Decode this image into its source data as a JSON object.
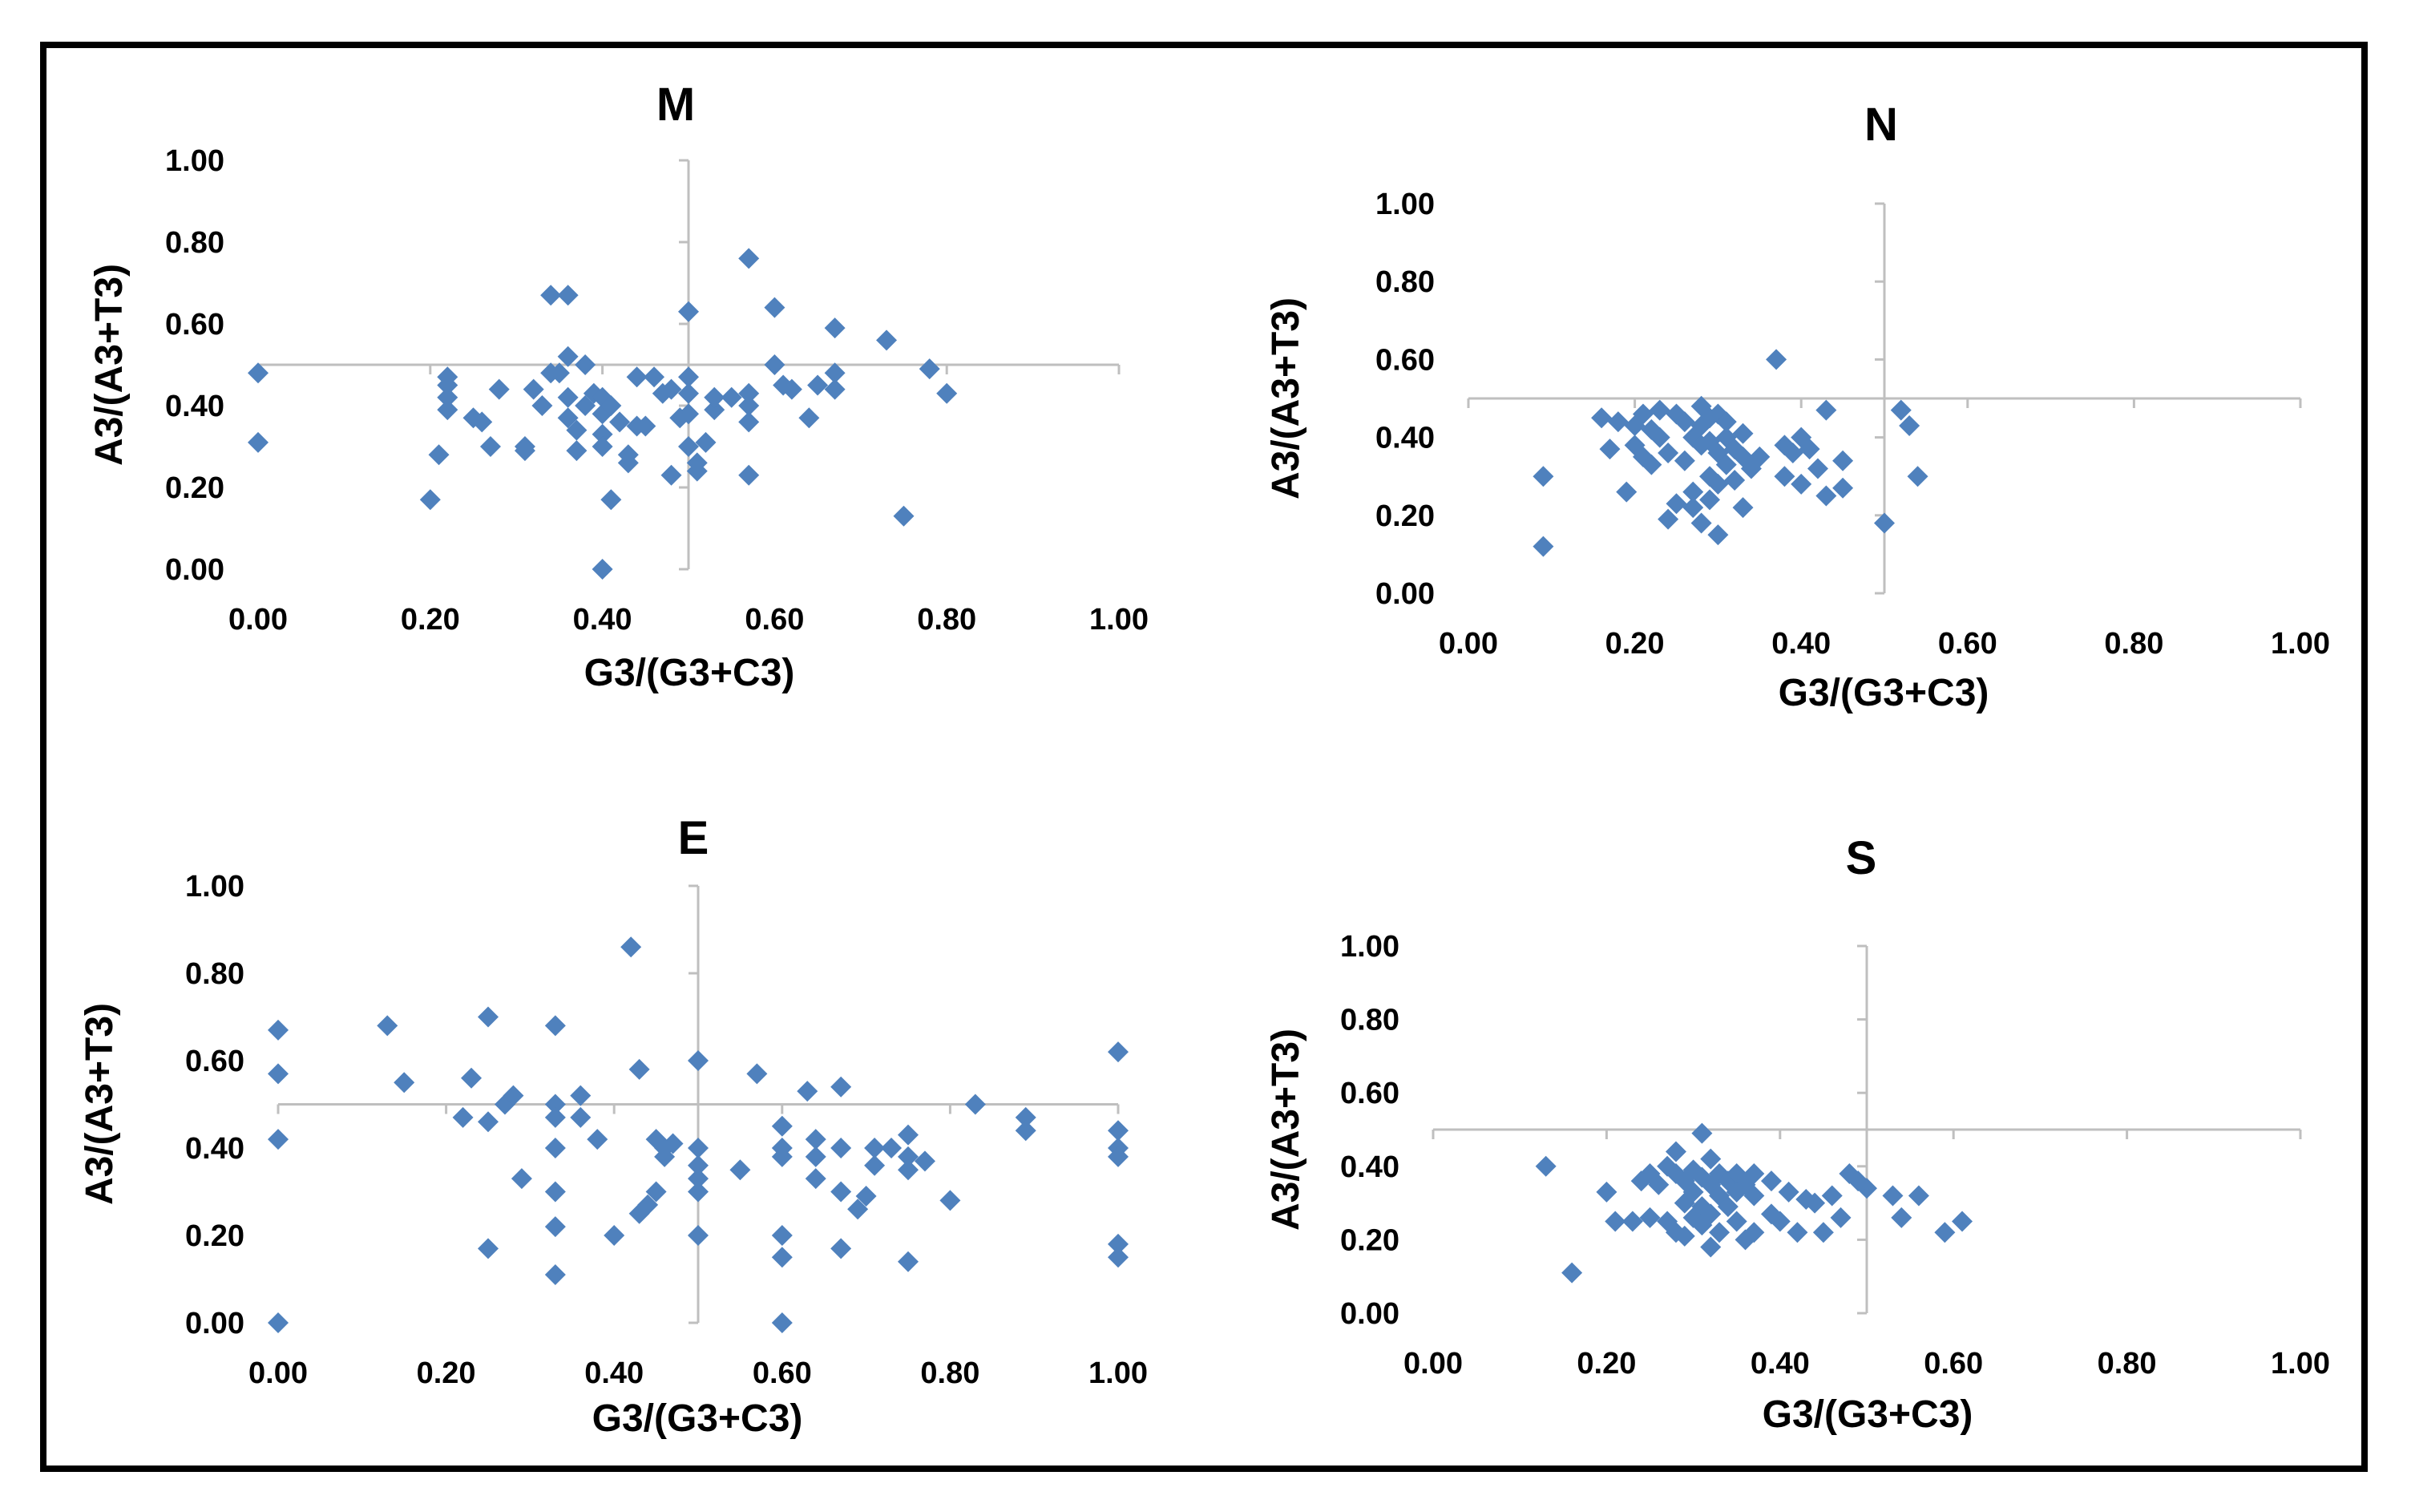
{
  "chart_data": [
    {
      "type": "scatter",
      "title": "M",
      "xlabel": "G3/(G3+C3)",
      "ylabel": "A3/(A3+T3)",
      "xlim": [
        0,
        1
      ],
      "ylim": [
        0,
        1
      ],
      "xticks": [
        "0.00",
        "0.20",
        "0.40",
        "0.60",
        "0.80",
        "1.00"
      ],
      "yticks": [
        "0.00",
        "0.20",
        "0.40",
        "0.60",
        "0.80",
        "1.00"
      ],
      "reference_lines": {
        "x": 0.5,
        "y": 0.5
      },
      "marker": "diamond",
      "color": "#4F81BD",
      "points": [
        [
          0.0,
          0.48
        ],
        [
          0.0,
          0.31
        ],
        [
          0.2,
          0.17
        ],
        [
          0.21,
          0.28
        ],
        [
          0.22,
          0.39
        ],
        [
          0.22,
          0.42
        ],
        [
          0.22,
          0.45
        ],
        [
          0.22,
          0.47
        ],
        [
          0.25,
          0.37
        ],
        [
          0.26,
          0.36
        ],
        [
          0.27,
          0.3
        ],
        [
          0.28,
          0.44
        ],
        [
          0.31,
          0.29
        ],
        [
          0.31,
          0.3
        ],
        [
          0.32,
          0.44
        ],
        [
          0.33,
          0.4
        ],
        [
          0.34,
          0.67
        ],
        [
          0.34,
          0.48
        ],
        [
          0.35,
          0.48
        ],
        [
          0.36,
          0.67
        ],
        [
          0.36,
          0.52
        ],
        [
          0.36,
          0.42
        ],
        [
          0.36,
          0.37
        ],
        [
          0.37,
          0.29
        ],
        [
          0.37,
          0.34
        ],
        [
          0.38,
          0.4
        ],
        [
          0.38,
          0.5
        ],
        [
          0.39,
          0.43
        ],
        [
          0.4,
          0.42
        ],
        [
          0.4,
          0.38
        ],
        [
          0.4,
          0.33
        ],
        [
          0.4,
          0.3
        ],
        [
          0.41,
          0.17
        ],
        [
          0.41,
          0.4
        ],
        [
          0.42,
          0.36
        ],
        [
          0.43,
          0.26
        ],
        [
          0.43,
          0.28
        ],
        [
          0.44,
          0.47
        ],
        [
          0.44,
          0.35
        ],
        [
          0.45,
          0.35
        ],
        [
          0.46,
          0.47
        ],
        [
          0.47,
          0.43
        ],
        [
          0.48,
          0.23
        ],
        [
          0.48,
          0.44
        ],
        [
          0.49,
          0.37
        ],
        [
          0.5,
          0.3
        ],
        [
          0.4,
          0.0
        ],
        [
          0.5,
          0.63
        ],
        [
          0.5,
          0.47
        ],
        [
          0.5,
          0.43
        ],
        [
          0.5,
          0.38
        ],
        [
          0.51,
          0.26
        ],
        [
          0.51,
          0.24
        ],
        [
          0.52,
          0.31
        ],
        [
          0.53,
          0.39
        ],
        [
          0.53,
          0.42
        ],
        [
          0.55,
          0.42
        ],
        [
          0.57,
          0.76
        ],
        [
          0.57,
          0.43
        ],
        [
          0.57,
          0.4
        ],
        [
          0.57,
          0.36
        ],
        [
          0.57,
          0.23
        ],
        [
          0.6,
          0.64
        ],
        [
          0.6,
          0.5
        ],
        [
          0.61,
          0.45
        ],
        [
          0.62,
          0.44
        ],
        [
          0.64,
          0.37
        ],
        [
          0.65,
          0.45
        ],
        [
          0.67,
          0.59
        ],
        [
          0.67,
          0.48
        ],
        [
          0.67,
          0.44
        ],
        [
          0.73,
          0.56
        ],
        [
          0.75,
          0.13
        ],
        [
          0.78,
          0.49
        ],
        [
          0.8,
          0.43
        ]
      ]
    },
    {
      "type": "scatter",
      "title": "N",
      "xlabel": "G3/(G3+C3)",
      "ylabel": "A3/(A3+T3)",
      "xlim": [
        0,
        1
      ],
      "ylim": [
        0,
        1
      ],
      "xticks": [
        "0.00",
        "0.20",
        "0.40",
        "0.60",
        "0.80",
        "1.00"
      ],
      "yticks": [
        "0.00",
        "0.20",
        "0.40",
        "0.60",
        "0.80",
        "1.00"
      ],
      "reference_lines": {
        "x": 0.5,
        "y": 0.5
      },
      "marker": "diamond",
      "color": "#4F81BD",
      "points": [
        [
          0.09,
          0.3
        ],
        [
          0.09,
          0.12
        ],
        [
          0.16,
          0.45
        ],
        [
          0.17,
          0.37
        ],
        [
          0.18,
          0.44
        ],
        [
          0.19,
          0.26
        ],
        [
          0.2,
          0.43
        ],
        [
          0.2,
          0.38
        ],
        [
          0.21,
          0.46
        ],
        [
          0.21,
          0.35
        ],
        [
          0.22,
          0.42
        ],
        [
          0.22,
          0.33
        ],
        [
          0.23,
          0.47
        ],
        [
          0.23,
          0.4
        ],
        [
          0.24,
          0.36
        ],
        [
          0.24,
          0.19
        ],
        [
          0.25,
          0.46
        ],
        [
          0.25,
          0.23
        ],
        [
          0.26,
          0.44
        ],
        [
          0.26,
          0.34
        ],
        [
          0.27,
          0.4
        ],
        [
          0.27,
          0.26
        ],
        [
          0.27,
          0.22
        ],
        [
          0.28,
          0.48
        ],
        [
          0.28,
          0.43
        ],
        [
          0.28,
          0.38
        ],
        [
          0.28,
          0.18
        ],
        [
          0.29,
          0.45
        ],
        [
          0.29,
          0.39
        ],
        [
          0.29,
          0.3
        ],
        [
          0.29,
          0.24
        ],
        [
          0.3,
          0.46
        ],
        [
          0.3,
          0.36
        ],
        [
          0.3,
          0.28
        ],
        [
          0.3,
          0.15
        ],
        [
          0.31,
          0.44
        ],
        [
          0.31,
          0.4
        ],
        [
          0.31,
          0.33
        ],
        [
          0.32,
          0.37
        ],
        [
          0.32,
          0.29
        ],
        [
          0.33,
          0.41
        ],
        [
          0.33,
          0.35
        ],
        [
          0.33,
          0.22
        ],
        [
          0.34,
          0.32
        ],
        [
          0.35,
          0.35
        ],
        [
          0.37,
          0.6
        ],
        [
          0.38,
          0.3
        ],
        [
          0.38,
          0.38
        ],
        [
          0.39,
          0.36
        ],
        [
          0.4,
          0.4
        ],
        [
          0.4,
          0.28
        ],
        [
          0.41,
          0.37
        ],
        [
          0.42,
          0.32
        ],
        [
          0.43,
          0.47
        ],
        [
          0.43,
          0.25
        ],
        [
          0.45,
          0.34
        ],
        [
          0.45,
          0.27
        ],
        [
          0.5,
          0.18
        ],
        [
          0.52,
          0.47
        ],
        [
          0.53,
          0.43
        ],
        [
          0.54,
          0.3
        ]
      ]
    },
    {
      "type": "scatter",
      "title": "E",
      "xlabel": "G3/(G3+C3)",
      "ylabel": "A3/(A3+T3)",
      "xlim": [
        0,
        1
      ],
      "ylim": [
        0,
        1
      ],
      "xticks": [
        "0.00",
        "0.20",
        "0.40",
        "0.60",
        "0.80",
        "1.00"
      ],
      "yticks": [
        "0.00",
        "0.20",
        "0.40",
        "0.60",
        "0.80",
        "1.00"
      ],
      "reference_lines": {
        "x": 0.5,
        "y": 0.5
      },
      "marker": "diamond",
      "color": "#4F81BD",
      "points": [
        [
          0.0,
          0.67
        ],
        [
          0.0,
          0.57
        ],
        [
          0.0,
          0.42
        ],
        [
          0.0,
          0.0
        ],
        [
          0.13,
          0.68
        ],
        [
          0.15,
          0.55
        ],
        [
          0.22,
          0.47
        ],
        [
          0.23,
          0.56
        ],
        [
          0.25,
          0.7
        ],
        [
          0.25,
          0.46
        ],
        [
          0.25,
          0.17
        ],
        [
          0.27,
          0.5
        ],
        [
          0.28,
          0.52
        ],
        [
          0.29,
          0.33
        ],
        [
          0.33,
          0.68
        ],
        [
          0.33,
          0.5
        ],
        [
          0.33,
          0.47
        ],
        [
          0.33,
          0.4
        ],
        [
          0.33,
          0.3
        ],
        [
          0.33,
          0.22
        ],
        [
          0.33,
          0.11
        ],
        [
          0.36,
          0.52
        ],
        [
          0.36,
          0.47
        ],
        [
          0.38,
          0.42
        ],
        [
          0.4,
          0.2
        ],
        [
          0.42,
          0.86
        ],
        [
          0.43,
          0.58
        ],
        [
          0.43,
          0.25
        ],
        [
          0.44,
          0.27
        ],
        [
          0.45,
          0.42
        ],
        [
          0.45,
          0.3
        ],
        [
          0.46,
          0.4
        ],
        [
          0.46,
          0.38
        ],
        [
          0.47,
          0.41
        ],
        [
          0.5,
          0.6
        ],
        [
          0.5,
          0.4
        ],
        [
          0.5,
          0.36
        ],
        [
          0.5,
          0.33
        ],
        [
          0.5,
          0.3
        ],
        [
          0.5,
          0.2
        ],
        [
          0.55,
          0.35
        ],
        [
          0.57,
          0.57
        ],
        [
          0.6,
          0.45
        ],
        [
          0.6,
          0.4
        ],
        [
          0.6,
          0.38
        ],
        [
          0.6,
          0.2
        ],
        [
          0.6,
          0.15
        ],
        [
          0.6,
          0.0
        ],
        [
          0.63,
          0.53
        ],
        [
          0.64,
          0.42
        ],
        [
          0.64,
          0.38
        ],
        [
          0.64,
          0.33
        ],
        [
          0.67,
          0.54
        ],
        [
          0.67,
          0.4
        ],
        [
          0.67,
          0.3
        ],
        [
          0.67,
          0.17
        ],
        [
          0.69,
          0.26
        ],
        [
          0.7,
          0.29
        ],
        [
          0.71,
          0.4
        ],
        [
          0.71,
          0.36
        ],
        [
          0.73,
          0.4
        ],
        [
          0.75,
          0.43
        ],
        [
          0.75,
          0.38
        ],
        [
          0.75,
          0.35
        ],
        [
          0.75,
          0.14
        ],
        [
          0.77,
          0.37
        ],
        [
          0.8,
          0.28
        ],
        [
          0.83,
          0.5
        ],
        [
          0.89,
          0.47
        ],
        [
          0.89,
          0.44
        ],
        [
          1.0,
          0.62
        ],
        [
          1.0,
          0.44
        ],
        [
          1.0,
          0.4
        ],
        [
          1.0,
          0.38
        ],
        [
          1.0,
          0.18
        ],
        [
          1.0,
          0.15
        ]
      ]
    },
    {
      "type": "scatter",
      "title": "S",
      "xlabel": "G3/(G3+C3)",
      "ylabel": "A3/(A3+T3)",
      "xlim": [
        0,
        1
      ],
      "ylim": [
        0,
        1
      ],
      "xticks": [
        "0.00",
        "0.20",
        "0.40",
        "0.60",
        "0.80",
        "1.00"
      ],
      "yticks": [
        "0.00",
        "0.20",
        "0.40",
        "0.60",
        "0.80",
        "1.00"
      ],
      "reference_lines": {
        "x": 0.5,
        "y": 0.5
      },
      "marker": "diamond",
      "color": "#4F81BD",
      "points": [
        [
          0.13,
          0.4
        ],
        [
          0.16,
          0.11
        ],
        [
          0.2,
          0.33
        ],
        [
          0.21,
          0.25
        ],
        [
          0.23,
          0.25
        ],
        [
          0.24,
          0.36
        ],
        [
          0.25,
          0.38
        ],
        [
          0.25,
          0.26
        ],
        [
          0.26,
          0.35
        ],
        [
          0.27,
          0.4
        ],
        [
          0.27,
          0.25
        ],
        [
          0.28,
          0.44
        ],
        [
          0.28,
          0.38
        ],
        [
          0.28,
          0.22
        ],
        [
          0.29,
          0.36
        ],
        [
          0.29,
          0.3
        ],
        [
          0.29,
          0.21
        ],
        [
          0.3,
          0.39
        ],
        [
          0.3,
          0.33
        ],
        [
          0.3,
          0.26
        ],
        [
          0.31,
          0.49
        ],
        [
          0.31,
          0.37
        ],
        [
          0.31,
          0.29
        ],
        [
          0.31,
          0.24
        ],
        [
          0.32,
          0.42
        ],
        [
          0.32,
          0.35
        ],
        [
          0.32,
          0.27
        ],
        [
          0.32,
          0.18
        ],
        [
          0.33,
          0.38
        ],
        [
          0.33,
          0.32
        ],
        [
          0.33,
          0.22
        ],
        [
          0.34,
          0.36
        ],
        [
          0.34,
          0.29
        ],
        [
          0.35,
          0.38
        ],
        [
          0.35,
          0.33
        ],
        [
          0.35,
          0.25
        ],
        [
          0.36,
          0.35
        ],
        [
          0.36,
          0.2
        ],
        [
          0.37,
          0.38
        ],
        [
          0.37,
          0.32
        ],
        [
          0.37,
          0.22
        ],
        [
          0.39,
          0.36
        ],
        [
          0.39,
          0.27
        ],
        [
          0.4,
          0.25
        ],
        [
          0.41,
          0.33
        ],
        [
          0.42,
          0.22
        ],
        [
          0.43,
          0.31
        ],
        [
          0.44,
          0.3
        ],
        [
          0.45,
          0.22
        ],
        [
          0.46,
          0.32
        ],
        [
          0.47,
          0.26
        ],
        [
          0.48,
          0.38
        ],
        [
          0.49,
          0.36
        ],
        [
          0.5,
          0.34
        ],
        [
          0.53,
          0.32
        ],
        [
          0.54,
          0.26
        ],
        [
          0.56,
          0.32
        ],
        [
          0.59,
          0.22
        ],
        [
          0.61,
          0.25
        ]
      ]
    }
  ]
}
